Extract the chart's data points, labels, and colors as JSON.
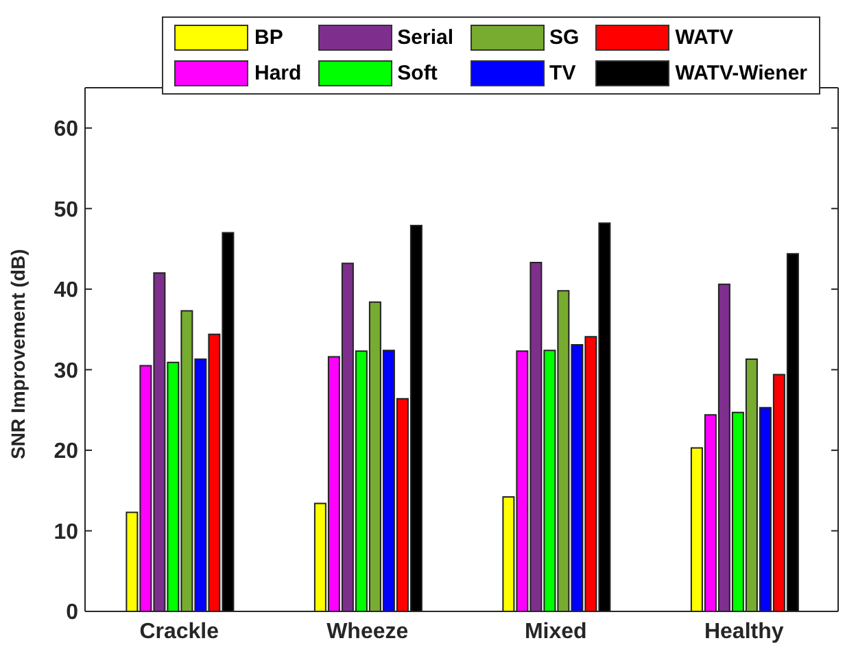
{
  "chart_data": {
    "type": "bar",
    "ylabel": "SNR Improvement (dB)",
    "categories": [
      "Crackle",
      "Wheeze",
      "Mixed",
      "Healthy"
    ],
    "series": [
      {
        "name": "BP",
        "color": "#ffff00",
        "values": [
          12.3,
          13.4,
          14.2,
          20.3
        ]
      },
      {
        "name": "Hard",
        "color": "#ff00ff",
        "values": [
          30.5,
          31.6,
          32.3,
          24.4
        ]
      },
      {
        "name": "Serial",
        "color": "#7e2f8e",
        "values": [
          42,
          43.2,
          43.3,
          40.6
        ]
      },
      {
        "name": "Soft",
        "color": "#00ff00",
        "values": [
          30.9,
          32.3,
          32.4,
          24.7
        ]
      },
      {
        "name": "SG",
        "color": "#77ac30",
        "values": [
          37.3,
          38.4,
          39.8,
          31.3
        ]
      },
      {
        "name": "TV",
        "color": "#0000ff",
        "values": [
          31.3,
          32.4,
          33.1,
          25.3
        ]
      },
      {
        "name": "WATV",
        "color": "#ff0000",
        "values": [
          34.4,
          26.4,
          34.1,
          29.4
        ]
      },
      {
        "name": "WATV-Wiener",
        "color": "#000000",
        "values": [
          47,
          47.9,
          48.2,
          44.4
        ]
      }
    ],
    "ylim": [
      0,
      65
    ],
    "yticks": [
      0,
      10,
      20,
      30,
      40,
      50,
      60
    ],
    "grid": false,
    "legend": "top"
  }
}
